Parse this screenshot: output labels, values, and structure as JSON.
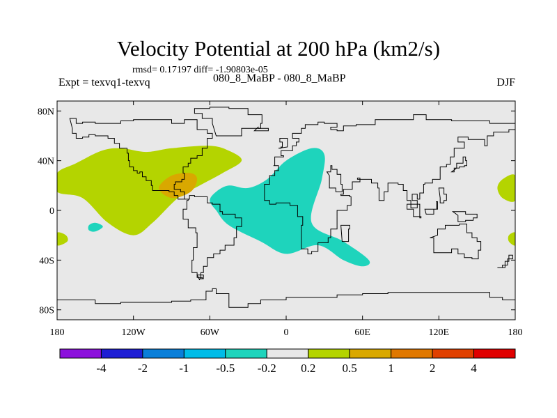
{
  "header": {
    "title": "Velocity Potential at 200 hPa (km2/s)",
    "stats": "rmsd= 0.17197 diff= -1.90803e-05",
    "experiment": "Expt = texvq1-texvq",
    "runs": "080_8_MaBP - 080_8_MaBP",
    "season": "DJF"
  },
  "map": {
    "lon_range": [
      -180,
      180
    ],
    "lat_range": [
      -90,
      90
    ],
    "ocean_color": "#e8e8e8",
    "lat_ticks": [
      {
        "lat": 80,
        "label": "80N"
      },
      {
        "lat": 40,
        "label": "40N"
      },
      {
        "lat": 0,
        "label": "0"
      },
      {
        "lat": -40,
        "label": "40S"
      },
      {
        "lat": -80,
        "label": "80S"
      }
    ],
    "lon_ticks": [
      {
        "lon": -180,
        "label": "180"
      },
      {
        "lon": -120,
        "label": "120W"
      },
      {
        "lon": -60,
        "label": "60W"
      },
      {
        "lon": 0,
        "label": "0"
      },
      {
        "lon": 60,
        "label": "60E"
      },
      {
        "lon": 120,
        "label": "120E"
      },
      {
        "lon": 180,
        "label": "180"
      }
    ],
    "anomaly_regions": [
      {
        "name": "positive-anomaly-pacific",
        "category": "0.2 to 0.5",
        "color": "#b4d400",
        "outline": [
          [
            -180,
            30
          ],
          [
            -165,
            38
          ],
          [
            -145,
            48
          ],
          [
            -130,
            50
          ],
          [
            -110,
            47
          ],
          [
            -90,
            50
          ],
          [
            -60,
            52
          ],
          [
            -45,
            48
          ],
          [
            -35,
            40
          ],
          [
            -50,
            30
          ],
          [
            -68,
            20
          ],
          [
            -85,
            10
          ],
          [
            -105,
            -10
          ],
          [
            -120,
            -20
          ],
          [
            -140,
            -10
          ],
          [
            -160,
            10
          ],
          [
            -180,
            15
          ]
        ]
      },
      {
        "name": "positive-anomaly-pacific-patch",
        "category": "0.2 to 0.5",
        "color": "#b4d400",
        "outline": [
          [
            -180,
            -18
          ],
          [
            -173,
            -20
          ],
          [
            -172,
            -25
          ],
          [
            -180,
            -28
          ]
        ]
      },
      {
        "name": "positive-anomaly-east-edge",
        "category": "0.2 to 0.5",
        "color": "#b4d400",
        "outline": [
          [
            180,
            28
          ],
          [
            170,
            25
          ],
          [
            166,
            18
          ],
          [
            170,
            10
          ],
          [
            180,
            8
          ]
        ]
      },
      {
        "name": "positive-anomaly-east-patch",
        "category": "0.2 to 0.5",
        "color": "#b4d400",
        "outline": [
          [
            180,
            -18
          ],
          [
            175,
            -20
          ],
          [
            175,
            -25
          ],
          [
            180,
            -28
          ]
        ]
      },
      {
        "name": "positive-anomaly-core",
        "category": "0.5 to 1",
        "color": "#d9a800",
        "outline": [
          [
            -100,
            18
          ],
          [
            -90,
            28
          ],
          [
            -75,
            30
          ],
          [
            -70,
            25
          ],
          [
            -75,
            15
          ],
          [
            -90,
            10
          ]
        ]
      },
      {
        "name": "negative-anomaly-atlantic-africa",
        "category": "-0.5 to -0.2",
        "color": "#1ed4bc",
        "outline": [
          [
            -55,
            15
          ],
          [
            -45,
            20
          ],
          [
            -30,
            18
          ],
          [
            -15,
            25
          ],
          [
            0,
            40
          ],
          [
            20,
            50
          ],
          [
            30,
            45
          ],
          [
            28,
            25
          ],
          [
            20,
            -10
          ],
          [
            45,
            -25
          ],
          [
            65,
            -40
          ],
          [
            60,
            -45
          ],
          [
            45,
            -40
          ],
          [
            25,
            -28
          ],
          [
            0,
            -35
          ],
          [
            -20,
            -25
          ],
          [
            -45,
            -12
          ],
          [
            -55,
            0
          ],
          [
            -60,
            8
          ]
        ]
      },
      {
        "name": "negative-anomaly-pacific-small",
        "category": "-0.5 to -0.2",
        "color": "#1ed4bc",
        "outline": [
          [
            -155,
            -12
          ],
          [
            -150,
            -10
          ],
          [
            -144,
            -13
          ],
          [
            -150,
            -17
          ],
          [
            -155,
            -16
          ]
        ]
      }
    ],
    "coastlines": [
      "M-170,74 L-165,70 L-160,71 L-150,70 L-140,70 L-130,72 L-120,73 L-100,73 L-90,70 L-80,73 L-70,72 L-70,65 L-62,62 L-58,58 L-62,50 L-66,44 L-70,42 L-75,38 L-77,35 L-81,30 L-80,25 L-82,23 L-87,21 L-88,17 L-83,15 L-80,9 L-77,8 L-78,1 L-81,-3 L-81,-7 L-77,-14 L-71,-18 L-70,-30 L-73,-40 L-74,-50 L-70,-54 L-66,-55 L-67,-50 L-65,-45 L-62,-38 L-57,-35 L-52,-32 L-48,-28 L-41,-22 L-39,-13 L-35,-6 L-40,-3 L-50,-1 L-52,5 L-58,6 L-62,11 L-72,12 L-76,9 L-82,9 L-85,12 L-88,15 L-92,16 L-96,16 L-105,20 L-106,24 L-110,27 L-113,31 L-115,30 L-117,32 L-120,35 L-123,40 L-124,46 L-125,50 L-131,54 L-135,58 L-140,60 L-150,61 L-155,59 L-160,58 L-165,62 L-168,66 Z",
      "M-55,60 L-44,60 L-35,66 L-20,70 L-19,77 L-30,82 L-45,83 L-60,82 L-72,78 L-66,74 L-58,70 Z",
      "M-25,64 L-14,64 L-14,66 L-22,67 Z",
      "M-10,36 L-9,43 L-2,44 L-4,48 L5,52 L8,55 L10,58 L5,62 L12,66 L15,69 L25,71 L30,70 L40,67 L35,65 L40,64 L45,68 L55,69 L70,73 L80,73 L100,77 L110,73 L130,72 L140,72 L160,70 L170,70 L180,69 L180,65 L175,63 L163,60 L158,52 L156,57 L143,59 L135,55 L140,50 L132,43 L129,37 L126,35 L121,31 L121,25 L115,22 L109,21 L108,14 L105,9 L103,13 L100,13 L99,8 L103,2 L98,8 L95,16 L92,21 L88,22 L80,15 L77,8 L73,18 L72,22 L67,25 L57,25 L56,26 L58,23 L52,17 L45,13 L43,12 L50,11 L51,4 L48,0 L40,-4 L40,-15 L35,-22 L33,-26 L25,-33 L20,-35 L17,-31 L12,-20 L12,-12 L13,-5 L9,0 L9,4 L3,6 L-8,5 L-13,8 L-17,15 L-17,21 L-13,28 L-9,32 L-6,36 Z",
      "M32,31 L35,36 L36,33 L40,29 L43,21 L44,15 L39,18 L34,28 Z",
      "M113,-22 L116,-34 L123,-34 L130,-31 L135,-35 L140,-38 L146,-39 L151,-32 L153,-25 L150,-22 L146,-18 L142,-11 L136,-12 L131,-12 L125,-15 L119,-20 Z",
      "M-180,-72 L-150,-75 L-130,-74 L-110,-74 L-90,-73 L-75,-72 L-63,-65 L-58,-63 L-55,-67 L-45,-78 L-30,-75 L-20,-72 L0,-70 L20,-70 L40,-68 L60,-67 L80,-66 L100,-66 L120,-66 L140,-66 L160,-70 L170,-72 L180,-73",
      "M-6,50 L-4,51 L-3,55 L-5,58 L-3,58 L1,52 L1,51 Z",
      "M130,31 L132,34 L136,35 L140,36 L142,40 L141,43 L139,38 L134,34 Z",
      "M95,5 L105,-6 L106,-5 L100,1 L95,5 Z",
      "M109,1 L118,7 L119,1 L116,-3 L110,-3 Z",
      "M131,-1 L141,-3 L150,-6 L147,-8 L141,-9 L135,-4 Z",
      "M120,18 L122,18 L124,13 L126,8 L124,6 L121,10 Z",
      "M43,-12 L50,-15 L49,-25 L44,-25 Z",
      "M166,-46 L172,-41 L175,-36 L178,-39 L174,-44 L170,-46 Z",
      "M-70,-52 L-65,-55 L-68,-56 Z"
    ]
  },
  "colorbar": {
    "colors": [
      "#8c10dc",
      "#1e1ed4",
      "#0a7fd9",
      "#00bce8",
      "#1ed4bc",
      "#e8e8e8",
      "#b4d400",
      "#d9a800",
      "#e07800",
      "#e04000",
      "#e00000"
    ],
    "labels": [
      "-4",
      "-2",
      "-1",
      "-0.5",
      "-0.2",
      "0.2",
      "0.5",
      "1",
      "2",
      "4"
    ]
  }
}
